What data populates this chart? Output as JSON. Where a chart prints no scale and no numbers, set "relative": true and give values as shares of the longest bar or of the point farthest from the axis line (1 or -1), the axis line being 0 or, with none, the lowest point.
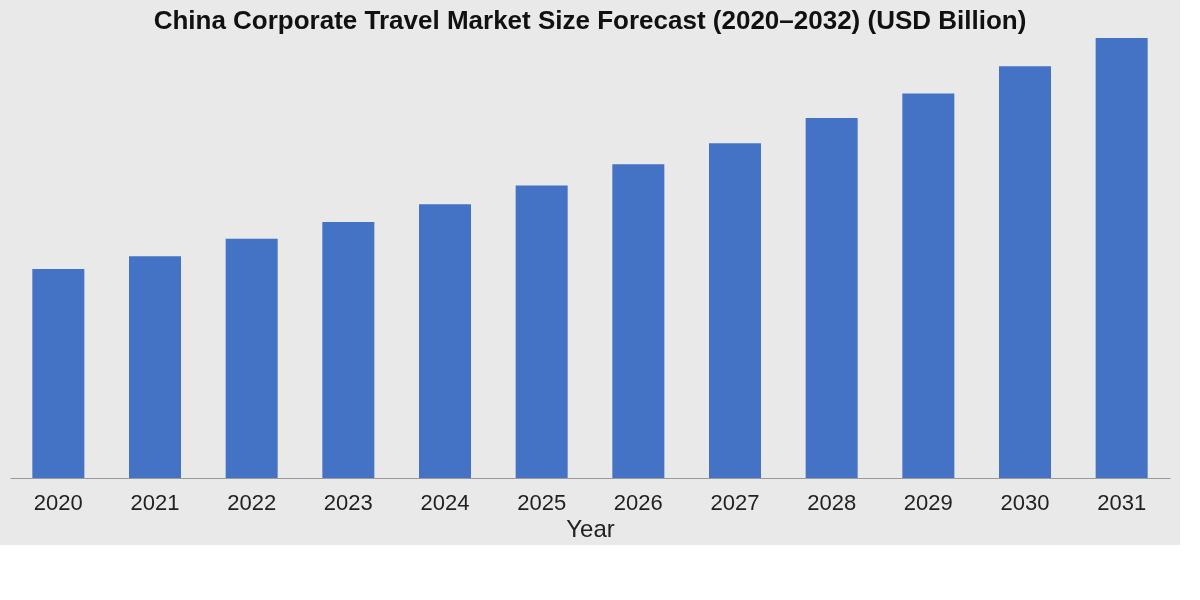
{
  "chart_data": {
    "type": "bar",
    "title": "China Corporate Travel Market Size Forecast (2020–2032) (USD Billion)",
    "xlabel": "Year",
    "categories": [
      "2020",
      "2021",
      "2022",
      "2023",
      "2024",
      "2025",
      "2026",
      "2027",
      "2028",
      "2029",
      "2030",
      "2031"
    ],
    "values": [
      0.475,
      0.504,
      0.544,
      0.582,
      0.622,
      0.665,
      0.713,
      0.761,
      0.818,
      0.874,
      0.936,
      1
    ],
    "color": "#4472c4",
    "relative": true
  }
}
